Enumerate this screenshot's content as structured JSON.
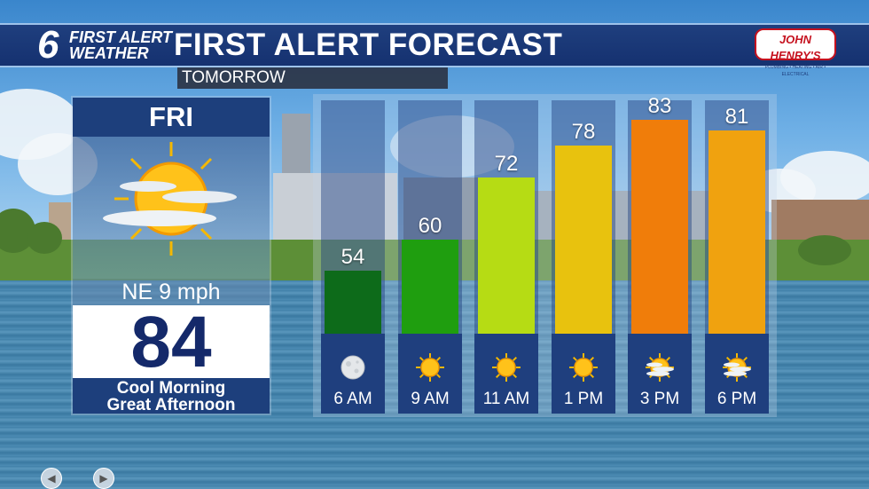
{
  "header": {
    "logo_number": "6",
    "logo_line1": "FIRST ALERT",
    "logo_line2": "WEATHER",
    "title": "FIRST ALERT FORECAST",
    "sponsor_name": "JOHN HENRY'S",
    "sponsor_tagline": "PLUMBING • HEATING • AIR • ELECTRICAL"
  },
  "subtitle": "TOMORROW",
  "day": {
    "name": "FRI",
    "icon": "partly-sunny-icon",
    "wind": "NE 9 mph",
    "high": "84",
    "desc_line1": "Cool Morning",
    "desc_line2": "Great Afternoon"
  },
  "chart_data": {
    "type": "bar",
    "categories": [
      "6 AM",
      "9 AM",
      "11 AM",
      "1 PM",
      "3 PM",
      "6 PM"
    ],
    "values": [
      54,
      60,
      72,
      78,
      83,
      81
    ],
    "labels": [
      "54",
      "60",
      "72",
      "78",
      "83",
      "81"
    ],
    "colors": [
      "#0d6b1a",
      "#1f9e0f",
      "#b6dc14",
      "#e8c20e",
      "#f07d0a",
      "#f0a20f"
    ],
    "icons": [
      "moon-icon",
      "sun-icon",
      "sun-icon",
      "sun-icon",
      "partly-sunny-icon",
      "partly-sunny-icon"
    ],
    "ylim": [
      40,
      90
    ]
  },
  "colors": {
    "header_blue": "#1f3f7e",
    "sponsor_red": "#c5121f"
  }
}
